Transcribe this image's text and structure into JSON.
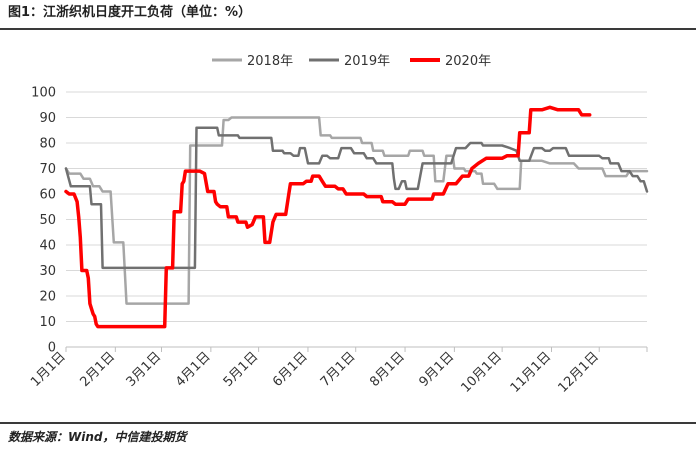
{
  "figure": {
    "title": "图1：江浙织机日度开工负荷（单位：%）",
    "source": "数据来源：Wind，中信建投期货"
  },
  "chart_data": {
    "type": "line",
    "title": "",
    "xlabel": "",
    "ylabel": "",
    "ylim": [
      0,
      100
    ],
    "yticks": [
      0,
      10,
      20,
      30,
      40,
      50,
      60,
      70,
      80,
      90,
      100
    ],
    "xlim": [
      1,
      366
    ],
    "xticks": [
      {
        "day": 1,
        "label": "1月1日"
      },
      {
        "day": 32,
        "label": "2月1日"
      },
      {
        "day": 61,
        "label": "3月1日"
      },
      {
        "day": 92,
        "label": "4月1日"
      },
      {
        "day": 122,
        "label": "5月1日"
      },
      {
        "day": 153,
        "label": "6月1日"
      },
      {
        "day": 183,
        "label": "7月1日"
      },
      {
        "day": 214,
        "label": "8月1日"
      },
      {
        "day": 245,
        "label": "9月1日"
      },
      {
        "day": 275,
        "label": "10月1日"
      },
      {
        "day": 306,
        "label": "11月1日"
      },
      {
        "day": 336,
        "label": "12月1日"
      }
    ],
    "grid": true,
    "legend": "top",
    "series": [
      {
        "name": "2018年",
        "color": "#a6a6a6",
        "points": [
          [
            1,
            70
          ],
          [
            3,
            68
          ],
          [
            10,
            68
          ],
          [
            12,
            66
          ],
          [
            16,
            66
          ],
          [
            18,
            63
          ],
          [
            22,
            63
          ],
          [
            24,
            61
          ],
          [
            29,
            61
          ],
          [
            31,
            41
          ],
          [
            37,
            41
          ],
          [
            39,
            17
          ],
          [
            60,
            17
          ],
          [
            70,
            17
          ],
          [
            78,
            17
          ],
          [
            79,
            79
          ],
          [
            90,
            79
          ],
          [
            99,
            79
          ],
          [
            100,
            89
          ],
          [
            103,
            89
          ],
          [
            105,
            90
          ],
          [
            150,
            90
          ],
          [
            160,
            90
          ],
          [
            161,
            83
          ],
          [
            167,
            83
          ],
          [
            168,
            82
          ],
          [
            180,
            82
          ],
          [
            186,
            82
          ],
          [
            187,
            80
          ],
          [
            193,
            80
          ],
          [
            194,
            77
          ],
          [
            200,
            77
          ],
          [
            201,
            75
          ],
          [
            212,
            75
          ],
          [
            216,
            75
          ],
          [
            217,
            77
          ],
          [
            225,
            77
          ],
          [
            226,
            75
          ],
          [
            232,
            75
          ],
          [
            233,
            65
          ],
          [
            238,
            65
          ],
          [
            240,
            75
          ],
          [
            244,
            75
          ],
          [
            245,
            70
          ],
          [
            251,
            70
          ],
          [
            252,
            69
          ],
          [
            258,
            69
          ],
          [
            259,
            68
          ],
          [
            262,
            68
          ],
          [
            263,
            64
          ],
          [
            270,
            64
          ],
          [
            272,
            62
          ],
          [
            280,
            62
          ],
          [
            286,
            62
          ],
          [
            287,
            73
          ],
          [
            300,
            73
          ],
          [
            305,
            72
          ],
          [
            320,
            72
          ],
          [
            323,
            70
          ],
          [
            336,
            70
          ],
          [
            338,
            70
          ],
          [
            340,
            67
          ],
          [
            353,
            67
          ],
          [
            355,
            69
          ],
          [
            366,
            69
          ]
        ]
      },
      {
        "name": "2019年",
        "color": "#707070",
        "points": [
          [
            1,
            70
          ],
          [
            4,
            63
          ],
          [
            16,
            63
          ],
          [
            17,
            56
          ],
          [
            23,
            56
          ],
          [
            24,
            31
          ],
          [
            45,
            31
          ],
          [
            60,
            31
          ],
          [
            72,
            31
          ],
          [
            82,
            31
          ],
          [
            83,
            86
          ],
          [
            96,
            86
          ],
          [
            97,
            83
          ],
          [
            109,
            83
          ],
          [
            110,
            82
          ],
          [
            130,
            82
          ],
          [
            131,
            77
          ],
          [
            137,
            77
          ],
          [
            138,
            76
          ],
          [
            142,
            76
          ],
          [
            144,
            75
          ],
          [
            147,
            75
          ],
          [
            148,
            78
          ],
          [
            151,
            78
          ],
          [
            153,
            72
          ],
          [
            160,
            72
          ],
          [
            162,
            75
          ],
          [
            165,
            75
          ],
          [
            167,
            74
          ],
          [
            172,
            74
          ],
          [
            174,
            78
          ],
          [
            180,
            78
          ],
          [
            182,
            76
          ],
          [
            188,
            76
          ],
          [
            190,
            74
          ],
          [
            194,
            74
          ],
          [
            196,
            72
          ],
          [
            202,
            72
          ],
          [
            206,
            72
          ],
          [
            207,
            66
          ],
          [
            208,
            62
          ],
          [
            210,
            62
          ],
          [
            212,
            65
          ],
          [
            214,
            65
          ],
          [
            215,
            62
          ],
          [
            222,
            62
          ],
          [
            225,
            72
          ],
          [
            238,
            72
          ],
          [
            243,
            72
          ],
          [
            246,
            78
          ],
          [
            252,
            78
          ],
          [
            255,
            80
          ],
          [
            262,
            80
          ],
          [
            263,
            79
          ],
          [
            275,
            79
          ],
          [
            280,
            78
          ],
          [
            284,
            77
          ],
          [
            286,
            73
          ],
          [
            290,
            73
          ],
          [
            292,
            73
          ],
          [
            295,
            78
          ],
          [
            300,
            78
          ],
          [
            302,
            77
          ],
          [
            305,
            77
          ],
          [
            307,
            78
          ],
          [
            315,
            78
          ],
          [
            317,
            75
          ],
          [
            336,
            75
          ],
          [
            338,
            74
          ],
          [
            342,
            74
          ],
          [
            343,
            72
          ],
          [
            345,
            72
          ],
          [
            348,
            72
          ],
          [
            350,
            69
          ],
          [
            355,
            69
          ],
          [
            357,
            67
          ],
          [
            360,
            67
          ],
          [
            362,
            65
          ],
          [
            364,
            65
          ],
          [
            366,
            61
          ]
        ]
      },
      {
        "name": "2020年",
        "color": "#ff0000",
        "points": [
          [
            1,
            61
          ],
          [
            3,
            60
          ],
          [
            6,
            60
          ],
          [
            8,
            57
          ],
          [
            9,
            51
          ],
          [
            10,
            43
          ],
          [
            11,
            30
          ],
          [
            14,
            30
          ],
          [
            15,
            27
          ],
          [
            16,
            17
          ],
          [
            17,
            15
          ],
          [
            18,
            13
          ],
          [
            19,
            12
          ],
          [
            20,
            9
          ],
          [
            21,
            8
          ],
          [
            45,
            8
          ],
          [
            60,
            8
          ],
          [
            63,
            8
          ],
          [
            64,
            31
          ],
          [
            68,
            31
          ],
          [
            69,
            53
          ],
          [
            73,
            53
          ],
          [
            74,
            64
          ],
          [
            75,
            65
          ],
          [
            76,
            69
          ],
          [
            84,
            69
          ],
          [
            85,
            69
          ],
          [
            88,
            68
          ],
          [
            90,
            61
          ],
          [
            94,
            61
          ],
          [
            95,
            57
          ],
          [
            96,
            56
          ],
          [
            98,
            55
          ],
          [
            102,
            55
          ],
          [
            103,
            51
          ],
          [
            108,
            51
          ],
          [
            109,
            49
          ],
          [
            114,
            49
          ],
          [
            115,
            47
          ],
          [
            118,
            48
          ],
          [
            120,
            51
          ],
          [
            125,
            51
          ],
          [
            126,
            41
          ],
          [
            129,
            41
          ],
          [
            131,
            49
          ],
          [
            133,
            52
          ],
          [
            139,
            52
          ],
          [
            141,
            60
          ],
          [
            142,
            64
          ],
          [
            150,
            64
          ],
          [
            152,
            65
          ],
          [
            155,
            65
          ],
          [
            156,
            67
          ],
          [
            160,
            67
          ],
          [
            162,
            65
          ],
          [
            164,
            63
          ],
          [
            170,
            63
          ],
          [
            172,
            62
          ],
          [
            175,
            62
          ],
          [
            177,
            60
          ],
          [
            188,
            60
          ],
          [
            190,
            59
          ],
          [
            199,
            59
          ],
          [
            200,
            57
          ],
          [
            206,
            57
          ],
          [
            208,
            56
          ],
          [
            214,
            56
          ],
          [
            216,
            58
          ],
          [
            231,
            58
          ],
          [
            232,
            60
          ],
          [
            238,
            60
          ],
          [
            241,
            64
          ],
          [
            246,
            64
          ],
          [
            250,
            67
          ],
          [
            254,
            67
          ],
          [
            256,
            70
          ],
          [
            260,
            72
          ],
          [
            265,
            74
          ],
          [
            275,
            74
          ],
          [
            278,
            75
          ],
          [
            285,
            75
          ],
          [
            286,
            84
          ],
          [
            292,
            84
          ],
          [
            293,
            93
          ],
          [
            300,
            93
          ],
          [
            305,
            94
          ],
          [
            310,
            93
          ],
          [
            323,
            93
          ],
          [
            325,
            91
          ],
          [
            330,
            91
          ]
        ]
      }
    ]
  }
}
